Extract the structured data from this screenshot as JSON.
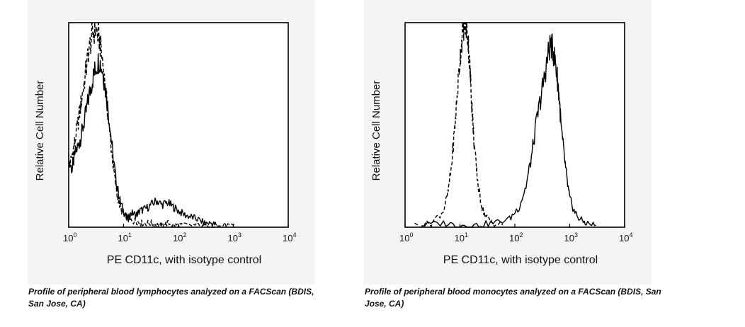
{
  "chart_data": [
    {
      "type": "line",
      "title": "",
      "xlabel": "PE CD11c, with isotype control",
      "ylabel": "Relative Cell Number",
      "x_scale": "log",
      "xlim": [
        1,
        10000
      ],
      "ylim": [
        0,
        100
      ],
      "x_ticks": [
        {
          "base": "10",
          "exp": "0"
        },
        {
          "base": "10",
          "exp": "1"
        },
        {
          "base": "10",
          "exp": "2"
        },
        {
          "base": "10",
          "exp": "3"
        },
        {
          "base": "10",
          "exp": "4"
        }
      ],
      "caption": "Profile of peripheral blood lymphocytes analyzed on a FACScan (BDIS, San Jose, CA)",
      "series": [
        {
          "style": "solid",
          "x": [
            1,
            1.15,
            1.3,
            1.5,
            1.7,
            2.0,
            2.3,
            2.7,
            3.1,
            3.6,
            4.2,
            4.9,
            5.7,
            6.6,
            7.6,
            8.8,
            10.3,
            12,
            14,
            17,
            20,
            25,
            32,
            40,
            50,
            63,
            80,
            100,
            130,
            170,
            220,
            300,
            400,
            500
          ],
          "y": [
            33,
            28,
            36,
            40,
            45,
            54,
            63,
            72,
            78,
            82,
            76,
            64,
            48,
            32,
            20,
            12,
            7,
            4,
            7,
            6,
            8,
            9,
            11,
            13,
            11,
            12,
            10,
            8,
            6,
            5,
            4,
            2,
            2,
            1
          ]
        },
        {
          "style": "dashed",
          "x": [
            1,
            1.15,
            1.3,
            1.5,
            1.7,
            2.0,
            2.3,
            2.7,
            3.1,
            3.6,
            4.2,
            4.9,
            5.7,
            6.6,
            7.6,
            8.8,
            10.3,
            12,
            14,
            17,
            20,
            25,
            32,
            40,
            50,
            63,
            80,
            100,
            150,
            250,
            400,
            700,
            1100
          ],
          "y": [
            28,
            35,
            42,
            52,
            62,
            74,
            86,
            94,
            97,
            92,
            80,
            62,
            44,
            28,
            16,
            9,
            6,
            4,
            3,
            3,
            2,
            2,
            2,
            1,
            1,
            2,
            1,
            1,
            1,
            1,
            0,
            1,
            0
          ]
        }
      ]
    },
    {
      "type": "line",
      "title": "",
      "xlabel": "PE CD11c, with isotype control",
      "ylabel": "Relative Cell Number",
      "x_scale": "log",
      "xlim": [
        1,
        10000
      ],
      "ylim": [
        0,
        100
      ],
      "x_ticks": [
        {
          "base": "10",
          "exp": "0"
        },
        {
          "base": "10",
          "exp": "1"
        },
        {
          "base": "10",
          "exp": "2"
        },
        {
          "base": "10",
          "exp": "3"
        },
        {
          "base": "10",
          "exp": "4"
        }
      ],
      "caption": "Profile of peripheral blood monocytes analyzed on a FACScan (BDIS, San Jose, CA)",
      "series": [
        {
          "style": "solid",
          "x": [
            2,
            5,
            10,
            20,
            40,
            80,
            120,
            160,
            200,
            250,
            300,
            350,
            400,
            450,
            500,
            550,
            600,
            650,
            700,
            800,
            900,
            1000,
            1200,
            1500,
            2000,
            3000
          ],
          "y": [
            1,
            2,
            1,
            1,
            2,
            4,
            10,
            20,
            34,
            52,
            64,
            74,
            84,
            90,
            86,
            80,
            72,
            62,
            48,
            34,
            22,
            14,
            8,
            4,
            2,
            1
          ]
        },
        {
          "style": "dashed",
          "x": [
            1.5,
            3,
            5,
            6,
            7,
            8,
            9,
            10,
            11,
            12,
            13,
            14,
            15,
            16,
            17,
            18,
            20,
            22,
            25,
            30,
            40,
            60
          ],
          "y": [
            1,
            2,
            8,
            16,
            30,
            48,
            66,
            82,
            94,
            100,
            98,
            92,
            80,
            66,
            54,
            42,
            28,
            18,
            10,
            5,
            2,
            1
          ]
        }
      ]
    }
  ]
}
